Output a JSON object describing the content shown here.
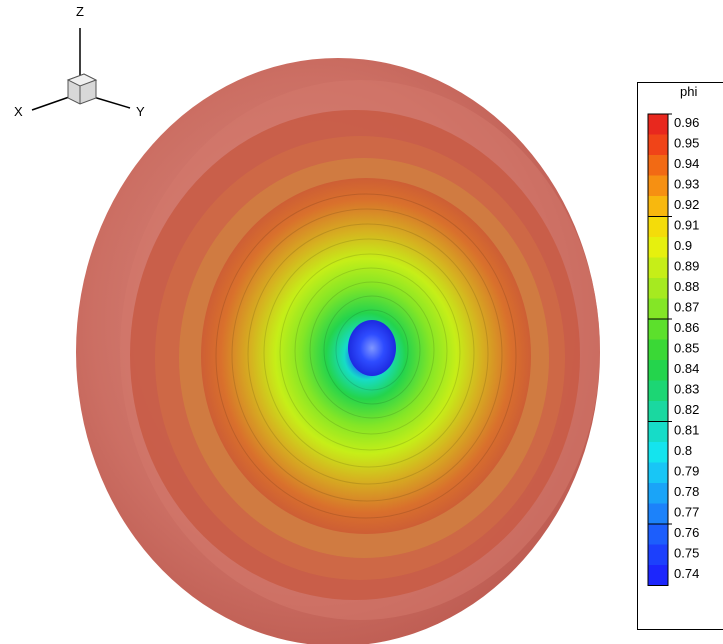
{
  "triad": {
    "z_label": "Z",
    "x_label": "X",
    "y_label": "Y"
  },
  "legend": {
    "title": "phi",
    "levels": [
      "0.96",
      "0.95",
      "0.94",
      "0.93",
      "0.92",
      "0.91",
      "0.9",
      "0.89",
      "0.88",
      "0.87",
      "0.86",
      "0.85",
      "0.84",
      "0.83",
      "0.82",
      "0.81",
      "0.8",
      "0.79",
      "0.78",
      "0.77",
      "0.76",
      "0.75",
      "0.74"
    ],
    "colors": [
      "#e8281e",
      "#f04418",
      "#f26a14",
      "#f69012",
      "#f8b80e",
      "#f4dc0a",
      "#e6f00e",
      "#c6ee18",
      "#a6ea20",
      "#84e626",
      "#5ce02c",
      "#3ad836",
      "#24d44c",
      "#1cd674",
      "#1ad8a0",
      "#16dcc8",
      "#14e4ee",
      "#18c6f6",
      "#1aa4f8",
      "#1c82fa",
      "#1c5efc",
      "#1c40fc",
      "#1c26fc"
    ]
  },
  "shells": {
    "outer_color": "#c8564a",
    "core_color": "#2a46ff"
  }
}
